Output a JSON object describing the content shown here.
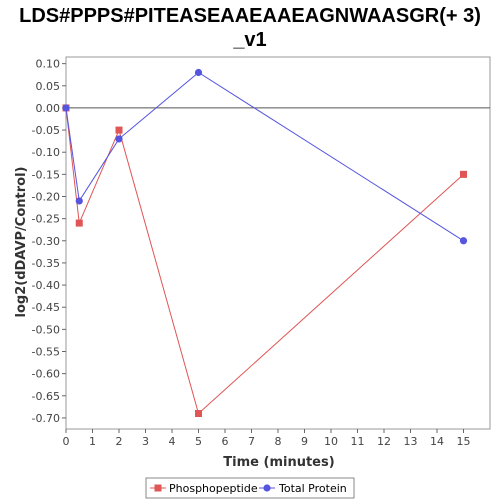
{
  "chart_data": {
    "type": "line",
    "title_lines": [
      "LDS#PPPS#PITEASEAAEAAEAGNWAASGR(+ 3)",
      "_v1"
    ],
    "xlabel": "Time (minutes)",
    "ylabel": "log2(dDAVP/Control)",
    "xlim": [
      0,
      16
    ],
    "ylim": [
      -0.725,
      0.115
    ],
    "x_ticks": [
      0,
      1,
      2,
      3,
      4,
      5,
      6,
      7,
      8,
      9,
      10,
      11,
      12,
      13,
      14,
      15
    ],
    "y_ticks": [
      0.1,
      0.05,
      0.0,
      -0.05,
      -0.1,
      -0.15,
      -0.2,
      -0.25,
      -0.3,
      -0.35,
      -0.4,
      -0.45,
      -0.5,
      -0.55,
      -0.6,
      -0.65,
      -0.7
    ],
    "grid": false,
    "zero_line": true,
    "legend_position": "bottom",
    "series": [
      {
        "name": "Phosphopeptide",
        "color": "#e05555",
        "marker": "square",
        "x": [
          0,
          0.5,
          2,
          5,
          15
        ],
        "y": [
          0.0,
          -0.26,
          -0.05,
          -0.69,
          -0.15
        ]
      },
      {
        "name": "Total Protein",
        "color": "#5555e0",
        "marker": "circle",
        "x": [
          0,
          0.5,
          2,
          5,
          15
        ],
        "y": [
          0.0,
          -0.21,
          -0.07,
          0.08,
          -0.3
        ]
      }
    ]
  }
}
